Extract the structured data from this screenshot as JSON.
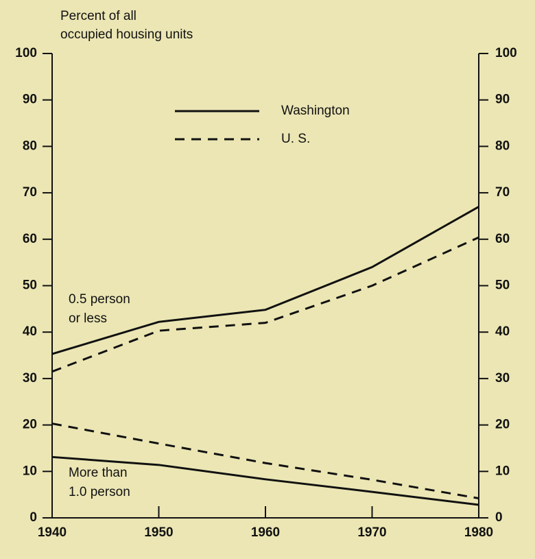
{
  "chart_data": {
    "type": "line",
    "y_label": [
      "Percent of all",
      "occupied housing units"
    ],
    "x": [
      1940,
      1950,
      1960,
      1970,
      1980
    ],
    "xlim": [
      1940,
      1980
    ],
    "xticks": [
      1940,
      1950,
      1960,
      1970,
      1980
    ],
    "ylim": [
      0,
      100
    ],
    "yticks": [
      0,
      10,
      20,
      30,
      40,
      50,
      60,
      70,
      80,
      90,
      100
    ],
    "y2lim": [
      0,
      100
    ],
    "y2ticks": [
      0,
      10,
      20,
      30,
      40,
      50,
      60,
      70,
      80,
      90,
      100
    ],
    "line_labels": [
      [
        "0.5 person",
        "or less"
      ],
      [
        "More than",
        "1.0 person"
      ]
    ],
    "series": [
      {
        "name": "Washington",
        "color": "#111111",
        "dash": "solid",
        "lines": [
          {
            "values": [
              35.3,
              42.2,
              44.8,
              54,
              67
            ]
          },
          {
            "values": [
              13.1,
              11.4,
              8.3,
              5.6,
              2.8
            ]
          }
        ]
      },
      {
        "name": "U. S.",
        "color": "#111111",
        "dash": "dashed",
        "lines": [
          {
            "values": [
              31.5,
              40.3,
              42,
              50,
              60.4
            ]
          },
          {
            "values": [
              20.3,
              16,
              11.8,
              8.2,
              4.2
            ]
          }
        ]
      }
    ]
  }
}
